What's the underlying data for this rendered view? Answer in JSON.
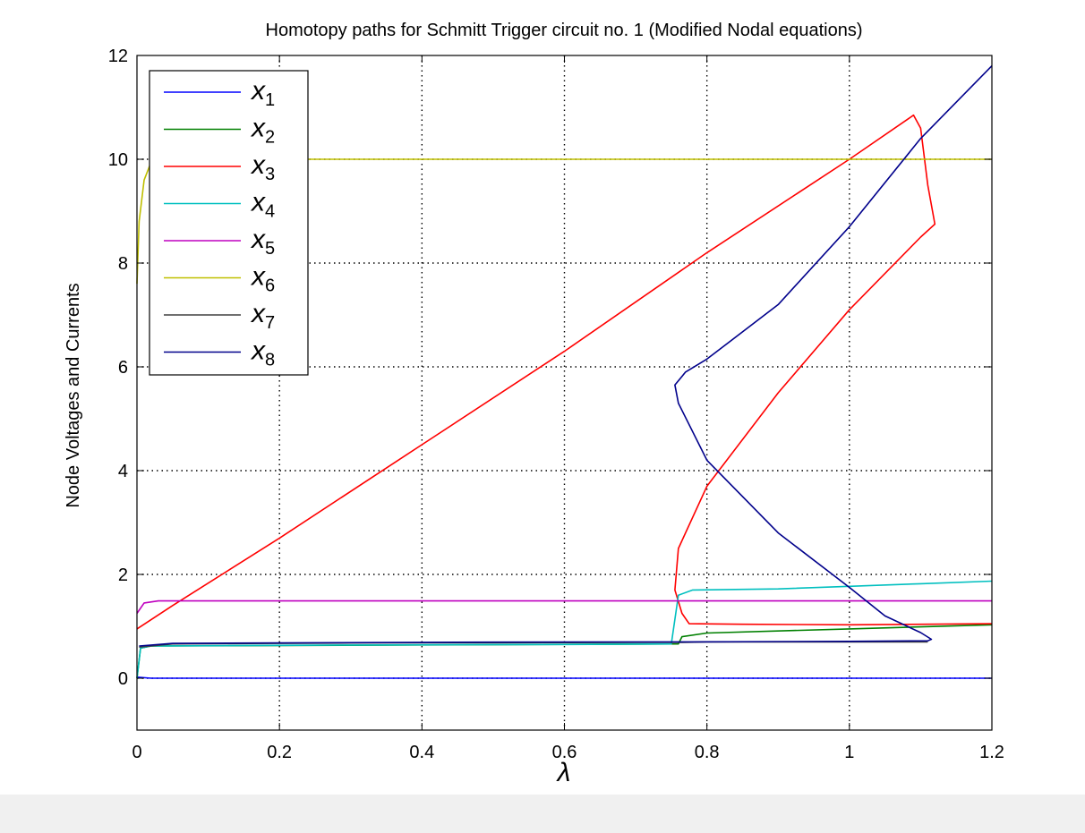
{
  "chart_data": {
    "type": "line",
    "title": "Homotopy paths for Schmitt Trigger circuit no. 1 (Modified Nodal equations)",
    "xlabel": "λ",
    "ylabel": "Node Voltages and Currents",
    "xlim": [
      0,
      1.2
    ],
    "ylim": [
      -1,
      12
    ],
    "xticks": [
      0,
      0.2,
      0.4,
      0.6,
      0.8,
      1,
      1.2
    ],
    "xtick_labels": [
      "0",
      "0.2",
      "0.4",
      "0.6",
      "0.8",
      "1",
      "1.2"
    ],
    "yticks": [
      0,
      2,
      4,
      6,
      8,
      10,
      12
    ],
    "ytick_labels": [
      "0",
      "2",
      "4",
      "6",
      "8",
      "10",
      "12"
    ],
    "grid": true,
    "legend_position": "top-left",
    "series": [
      {
        "name": "x",
        "sub": "1",
        "color": "#0000ff",
        "points": [
          [
            0,
            0.02
          ],
          [
            0.02,
            0
          ],
          [
            1.2,
            0
          ]
        ]
      },
      {
        "name": "x",
        "sub": "2",
        "color": "#008000",
        "points": [
          [
            0,
            0
          ],
          [
            0.005,
            0.58
          ],
          [
            0.02,
            0.62
          ],
          [
            0.76,
            0.66
          ],
          [
            0.765,
            0.8
          ],
          [
            0.8,
            0.87
          ],
          [
            1.0,
            0.95
          ],
          [
            1.2,
            1.03
          ]
        ]
      },
      {
        "name": "x",
        "sub": "3",
        "color": "#ff0000",
        "points": [
          [
            0,
            0.95
          ],
          [
            0.05,
            1.4
          ],
          [
            0.2,
            2.7
          ],
          [
            0.4,
            4.5
          ],
          [
            0.6,
            6.3
          ],
          [
            0.8,
            8.2
          ],
          [
            1.0,
            10.0
          ],
          [
            1.09,
            10.85
          ],
          [
            1.1,
            10.6
          ],
          [
            1.11,
            9.5
          ],
          [
            1.12,
            8.75
          ],
          [
            1.1,
            8.5
          ],
          [
            1.0,
            7.1
          ],
          [
            0.9,
            5.5
          ],
          [
            0.8,
            3.7
          ],
          [
            0.76,
            2.5
          ],
          [
            0.755,
            1.7
          ],
          [
            0.765,
            1.25
          ],
          [
            0.775,
            1.05
          ],
          [
            0.85,
            1.04
          ],
          [
            1.0,
            1.03
          ],
          [
            1.2,
            1.05
          ]
        ]
      },
      {
        "name": "x",
        "sub": "4",
        "color": "#00bfbf",
        "points": [
          [
            0,
            0
          ],
          [
            0.005,
            0.58
          ],
          [
            0.02,
            0.62
          ],
          [
            0.3,
            0.64
          ],
          [
            0.6,
            0.65
          ],
          [
            0.75,
            0.66
          ],
          [
            0.76,
            1.6
          ],
          [
            0.78,
            1.7
          ],
          [
            0.9,
            1.72
          ],
          [
            1.0,
            1.77
          ],
          [
            1.1,
            1.82
          ],
          [
            1.2,
            1.87
          ]
        ]
      },
      {
        "name": "x",
        "sub": "5",
        "color": "#bf00bf",
        "points": [
          [
            0,
            1.25
          ],
          [
            0.01,
            1.45
          ],
          [
            0.03,
            1.49
          ],
          [
            1.2,
            1.49
          ]
        ]
      },
      {
        "name": "x",
        "sub": "6",
        "color": "#bfbf00",
        "points": [
          [
            0,
            7.6
          ],
          [
            0.003,
            8.8
          ],
          [
            0.01,
            9.6
          ],
          [
            0.02,
            9.95
          ],
          [
            0.05,
            10.0
          ],
          [
            1.2,
            10.0
          ]
        ]
      },
      {
        "name": "x",
        "sub": "7",
        "color": "#404040",
        "points": [
          [
            0.003,
            0.6
          ],
          [
            0.05,
            0.66
          ],
          [
            0.3,
            0.68
          ],
          [
            0.5,
            0.685
          ],
          [
            0.7,
            0.69
          ],
          [
            0.76,
            0.69
          ],
          [
            0.8,
            0.7
          ],
          [
            1.0,
            0.7
          ],
          [
            1.11,
            0.7
          ]
        ]
      },
      {
        "name": "x",
        "sub": "8",
        "color": "#00008b",
        "points": [
          [
            0.003,
            0.62
          ],
          [
            0.05,
            0.67
          ],
          [
            0.2,
            0.68
          ],
          [
            0.5,
            0.695
          ],
          [
            0.78,
            0.7
          ],
          [
            1.0,
            0.71
          ],
          [
            1.11,
            0.72
          ],
          [
            1.115,
            0.75
          ],
          [
            1.1,
            0.88
          ],
          [
            1.05,
            1.2
          ],
          [
            1.0,
            1.75
          ],
          [
            0.9,
            2.8
          ],
          [
            0.8,
            4.2
          ],
          [
            0.76,
            5.3
          ],
          [
            0.755,
            5.65
          ],
          [
            0.77,
            5.9
          ],
          [
            0.8,
            6.15
          ],
          [
            0.9,
            7.2
          ],
          [
            1.0,
            8.7
          ],
          [
            1.1,
            10.4
          ],
          [
            1.2,
            11.8
          ]
        ]
      }
    ]
  }
}
